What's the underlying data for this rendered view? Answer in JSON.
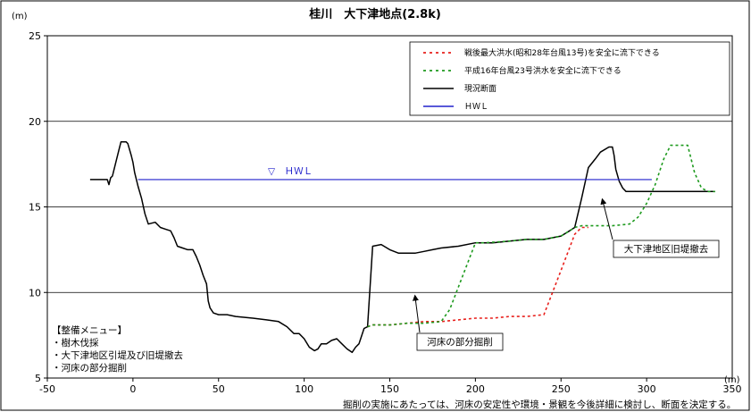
{
  "chart_data": {
    "type": "line",
    "title": "桂川　大下津地点(2.8k)",
    "x_unit": "(m)",
    "y_unit": "(m)",
    "xlim": [
      -50,
      350
    ],
    "ylim": [
      5,
      25
    ],
    "x_ticks": [
      "-50",
      "0",
      "50",
      "100",
      "150",
      "200",
      "250",
      "300",
      "350"
    ],
    "y_ticks": [
      "5",
      "10",
      "15",
      "20",
      "25"
    ],
    "legend": {
      "placement": "top-right",
      "items": [
        {
          "label": "戦後最大洪水(昭和28年台風13号)を安全に流下できる",
          "color": "#e8201c",
          "dash": "dot"
        },
        {
          "label": "平成16年台風23号洪水を安全に流下できる",
          "color": "#1e9a1e",
          "dash": "dot"
        },
        {
          "label": "現況断面",
          "color": "#000000",
          "dash": "solid"
        },
        {
          "label": "ＨＷＬ",
          "color": "#2222cc",
          "dash": "solid"
        }
      ]
    },
    "series": [
      {
        "name": "現況断面",
        "color": "#000000",
        "points": [
          [
            -25,
            16.6
          ],
          [
            -15,
            16.6
          ],
          [
            -14,
            16.3
          ],
          [
            -13,
            16.7
          ],
          [
            -12,
            16.8
          ],
          [
            -10,
            17.6
          ],
          [
            -8,
            18.4
          ],
          [
            -7,
            18.8
          ],
          [
            -4,
            18.8
          ],
          [
            -3,
            18.7
          ],
          [
            -1,
            18.0
          ],
          [
            0,
            17.6
          ],
          [
            1,
            17.0
          ],
          [
            3,
            16.2
          ],
          [
            5,
            15.5
          ],
          [
            7,
            14.6
          ],
          [
            9,
            14.0
          ],
          [
            13,
            14.1
          ],
          [
            16,
            13.8
          ],
          [
            19,
            13.7
          ],
          [
            22,
            13.6
          ],
          [
            24,
            13.2
          ],
          [
            26,
            12.7
          ],
          [
            29,
            12.6
          ],
          [
            32,
            12.5
          ],
          [
            35,
            12.5
          ],
          [
            37,
            12.1
          ],
          [
            39,
            11.6
          ],
          [
            41,
            11.0
          ],
          [
            43,
            10.5
          ],
          [
            44,
            9.5
          ],
          [
            45,
            9.1
          ],
          [
            47,
            8.8
          ],
          [
            50,
            8.7
          ],
          [
            55,
            8.7
          ],
          [
            60,
            8.6
          ],
          [
            70,
            8.5
          ],
          [
            78,
            8.4
          ],
          [
            85,
            8.3
          ],
          [
            90,
            8.0
          ],
          [
            94,
            7.6
          ],
          [
            97,
            7.6
          ],
          [
            100,
            7.3
          ],
          [
            103,
            6.8
          ],
          [
            106,
            6.6
          ],
          [
            108,
            6.7
          ],
          [
            110,
            7.0
          ],
          [
            113,
            7.0
          ],
          [
            116,
            7.2
          ],
          [
            119,
            7.3
          ],
          [
            122,
            7.0
          ],
          [
            125,
            6.7
          ],
          [
            128,
            6.5
          ],
          [
            130,
            6.8
          ],
          [
            132,
            7.0
          ],
          [
            135,
            7.9
          ],
          [
            137,
            8.0
          ],
          [
            140,
            12.7
          ],
          [
            145,
            12.8
          ],
          [
            150,
            12.5
          ],
          [
            155,
            12.3
          ],
          [
            165,
            12.3
          ],
          [
            170,
            12.4
          ],
          [
            175,
            12.5
          ],
          [
            180,
            12.6
          ],
          [
            190,
            12.7
          ],
          [
            200,
            12.9
          ],
          [
            210,
            12.9
          ],
          [
            220,
            13.0
          ],
          [
            230,
            13.1
          ],
          [
            240,
            13.1
          ],
          [
            250,
            13.3
          ],
          [
            255,
            13.6
          ],
          [
            258,
            13.8
          ],
          [
            262,
            15.5
          ],
          [
            266,
            17.3
          ],
          [
            270,
            17.8
          ],
          [
            273,
            18.2
          ],
          [
            278,
            18.5
          ],
          [
            280,
            18.5
          ],
          [
            281,
            18.0
          ],
          [
            282,
            17.2
          ],
          [
            284,
            16.5
          ],
          [
            286,
            16.1
          ],
          [
            288,
            15.9
          ],
          [
            290,
            15.9
          ],
          [
            300,
            15.9
          ],
          [
            310,
            15.9
          ],
          [
            320,
            15.9
          ],
          [
            330,
            15.9
          ],
          [
            340,
            15.9
          ]
        ]
      },
      {
        "name": "戦後最大洪水(昭和28年台風13号)を安全に流下できる",
        "color": "#e8201c",
        "points": [
          [
            137,
            8.0
          ],
          [
            140,
            8.1
          ],
          [
            150,
            8.1
          ],
          [
            160,
            8.2
          ],
          [
            170,
            8.3
          ],
          [
            180,
            8.3
          ],
          [
            190,
            8.4
          ],
          [
            200,
            8.5
          ],
          [
            210,
            8.5
          ],
          [
            220,
            8.6
          ],
          [
            230,
            8.6
          ],
          [
            240,
            8.7
          ],
          [
            250,
            11.3
          ],
          [
            258,
            13.4
          ],
          [
            262,
            13.8
          ],
          [
            266,
            13.8
          ]
        ]
      },
      {
        "name": "平成16年台風23号洪水を安全に流下できる",
        "color": "#1e9a1e",
        "points": [
          [
            137,
            8.0
          ],
          [
            140,
            8.1
          ],
          [
            150,
            8.1
          ],
          [
            160,
            8.2
          ],
          [
            170,
            8.2
          ],
          [
            180,
            8.3
          ],
          [
            185,
            9.0
          ],
          [
            190,
            10.3
          ],
          [
            200,
            12.9
          ],
          [
            205,
            12.9
          ],
          [
            220,
            13.0
          ],
          [
            230,
            13.1
          ],
          [
            240,
            13.1
          ],
          [
            250,
            13.3
          ],
          [
            255,
            13.6
          ],
          [
            258,
            13.8
          ],
          [
            262,
            13.9
          ],
          [
            270,
            13.9
          ],
          [
            280,
            13.9
          ],
          [
            290,
            14.0
          ],
          [
            295,
            14.4
          ],
          [
            300,
            15.2
          ],
          [
            305,
            16.3
          ],
          [
            310,
            17.8
          ],
          [
            314,
            18.6
          ],
          [
            320,
            18.6
          ],
          [
            324,
            18.6
          ],
          [
            328,
            17.0
          ],
          [
            332,
            16.1
          ],
          [
            336,
            15.9
          ],
          [
            340,
            15.9
          ]
        ]
      },
      {
        "name": "ＨＷＬ",
        "color": "#2222cc",
        "points": [
          [
            3,
            16.6
          ],
          [
            303,
            16.6
          ]
        ]
      }
    ],
    "annotations": {
      "hwl_label": "▽　ＨＷＬ",
      "old_levee": "大下津地区旧堤撤去",
      "riverbed": "河床の部分掘削"
    },
    "menu": {
      "title": "【整備メニュー】",
      "items": [
        "・樹木伐採",
        "・大下津地区引堤及び旧堤撤去",
        "・河床の部分掘削"
      ]
    },
    "footnote": "掘削の実施にあたっては、河床の安定性や環境・景観を今後詳細に検討し、断面を決定する。",
    "grid": "horizontal"
  }
}
